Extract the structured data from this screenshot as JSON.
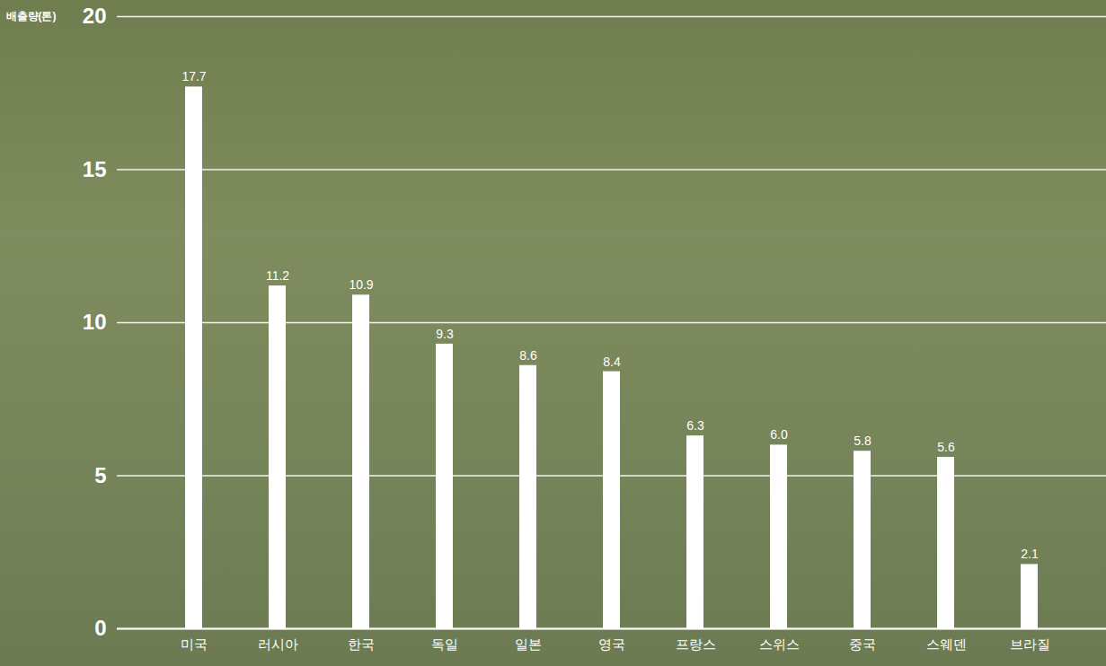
{
  "chart_data": {
    "type": "bar",
    "y_label": "배출량(톤)",
    "categories": [
      "미국",
      "러시아",
      "한국",
      "독일",
      "일본",
      "영국",
      "프랑스",
      "스위스",
      "중국",
      "스웨덴",
      "브라질"
    ],
    "values": [
      17.7,
      11.2,
      10.9,
      9.3,
      8.6,
      8.4,
      6.3,
      6.0,
      5.8,
      5.6,
      2.1
    ],
    "value_labels": [
      "17.7",
      "11.2",
      "10.9",
      "9.3",
      "8.6",
      "8.4",
      "6.3",
      "6.0",
      "5.8",
      "5.6",
      "2.1"
    ],
    "color": "#ffffff",
    "ylim": [
      0,
      20
    ],
    "yticks": [
      0,
      5,
      10,
      15,
      20
    ],
    "grid": true,
    "data_labels": true
  }
}
